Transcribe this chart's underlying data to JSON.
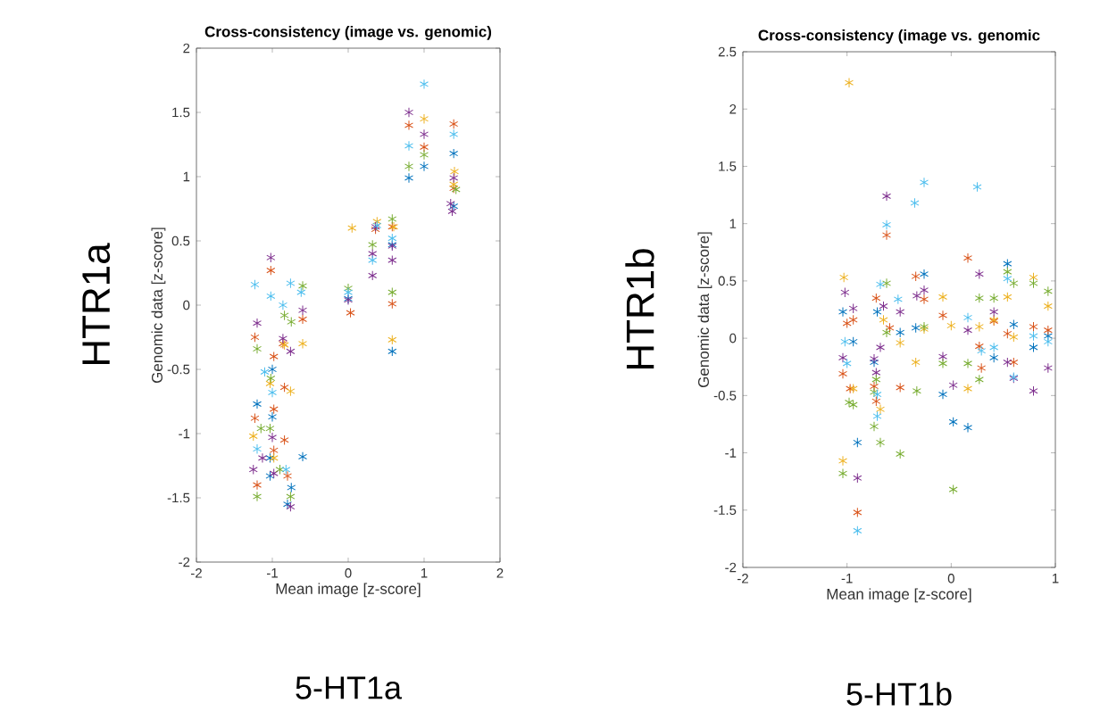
{
  "chart_data": [
    {
      "type": "scatter",
      "title": "Cross-consistency (image vs. genomic)",
      "xlabel": "Mean image [z-score]",
      "ylabel": "Genomic data [z-score]",
      "annotations": [
        "HTR1a",
        "5-HT1a"
      ],
      "marker": "cross",
      "xlim": [
        -2,
        2
      ],
      "ylim": [
        -2,
        2
      ],
      "xticks": [
        -2,
        -1,
        0,
        1,
        2
      ],
      "yticks": [
        -2,
        -1.5,
        -1,
        -0.5,
        0,
        0.5,
        1,
        1.5,
        2
      ],
      "series": [
        {
          "color": "#0072bd",
          "x": [
            -1.2,
            -1.03,
            -1.0,
            -1.03,
            -1.0,
            -0.8,
            -0.75,
            -0.6,
            0.0,
            0.58,
            0.58,
            0.8,
            1.0,
            1.39,
            1.39
          ],
          "values": [
            -0.77,
            -1.33,
            -0.5,
            -1.19,
            -0.87,
            -1.55,
            -1.42,
            -1.18,
            0.05,
            0.47,
            -0.36,
            0.99,
            1.08,
            1.18,
            0.77
          ]
        },
        {
          "color": "#d95319",
          "x": [
            -1.23,
            -1.23,
            -1.2,
            -1.02,
            -0.98,
            -0.98,
            -0.98,
            -0.86,
            -0.84,
            -0.84,
            -0.8,
            -0.6,
            0.03,
            0.36,
            0.58,
            0.58,
            0.8,
            1.0,
            1.39,
            1.39
          ],
          "values": [
            -0.25,
            -0.88,
            -1.4,
            0.27,
            -0.4,
            -0.81,
            -1.13,
            -0.3,
            -0.64,
            -1.05,
            -1.33,
            -0.11,
            -0.06,
            0.59,
            0.61,
            0.01,
            1.4,
            1.23,
            1.41,
            0.91
          ]
        },
        {
          "color": "#edb120",
          "x": [
            -1.25,
            -0.98,
            -1.03,
            -0.84,
            -0.76,
            -0.6,
            0.05,
            0.38,
            0.6,
            0.58,
            1.0,
            1.4,
            1.39
          ],
          "values": [
            -1.02,
            -1.19,
            -0.61,
            -0.31,
            -0.67,
            -0.3,
            0.6,
            0.65,
            0.61,
            -0.27,
            1.45,
            1.04,
            0.94
          ]
        },
        {
          "color": "#7e2f8e",
          "x": [
            -1.2,
            -1.25,
            -1.13,
            -1.02,
            -1.0,
            -0.98,
            -0.86,
            -0.76,
            -0.76,
            -0.6,
            0.0,
            0.36,
            0.32,
            0.32,
            0.58,
            0.58,
            0.8,
            1.0,
            1.39,
            1.35,
            1.37
          ],
          "values": [
            -0.14,
            -1.28,
            -1.19,
            0.37,
            -1.03,
            -1.31,
            -0.26,
            -1.57,
            -0.36,
            -0.04,
            0.04,
            0.61,
            0.4,
            0.23,
            0.46,
            0.35,
            1.5,
            1.33,
            0.99,
            0.79,
            0.73
          ]
        },
        {
          "color": "#77ac30",
          "x": [
            -1.2,
            -1.15,
            -1.2,
            -1.02,
            -1.03,
            -0.9,
            -0.84,
            -0.75,
            -0.76,
            -0.6,
            0.0,
            0.32,
            0.58,
            0.58,
            0.8,
            1.0,
            1.42
          ],
          "values": [
            -0.34,
            -0.96,
            -1.49,
            -0.57,
            -0.96,
            -1.28,
            -0.08,
            -0.13,
            -1.49,
            0.15,
            0.13,
            0.47,
            0.67,
            0.1,
            1.08,
            1.17,
            0.9
          ]
        },
        {
          "color": "#4dbeee",
          "x": [
            -1.23,
            -1.2,
            -1.02,
            -1.1,
            -1.0,
            -0.86,
            -0.82,
            -0.76,
            -0.62,
            0.0,
            0.32,
            0.38,
            0.58,
            0.8,
            1.0,
            1.39
          ],
          "values": [
            0.16,
            -1.12,
            0.07,
            -0.52,
            -0.68,
            0.0,
            -1.28,
            0.17,
            0.1,
            0.1,
            0.35,
            0.62,
            0.52,
            1.24,
            1.72,
            1.33
          ]
        }
      ]
    },
    {
      "type": "scatter",
      "title": "Cross-consistency (image vs. genomic",
      "xlabel": "Mean image [z-score]",
      "ylabel": "Genomic data [z-score]",
      "annotations": [
        "HTR1b",
        "5-HT1b"
      ],
      "marker": "cross",
      "xlim": [
        -2,
        1
      ],
      "ylim": [
        -2,
        2.5
      ],
      "xticks": [
        -2,
        -1,
        0,
        1
      ],
      "yticks": [
        -2,
        -1.5,
        -1,
        -0.5,
        0,
        0.5,
        1,
        1.5,
        2,
        2.5
      ],
      "series": [
        {
          "color": "#0072bd",
          "x": [
            -1.04,
            -0.94,
            -0.9,
            -0.71,
            -0.74,
            -0.49,
            -0.34,
            -0.26,
            -0.08,
            0.02,
            0.16,
            0.41,
            0.54,
            0.6,
            0.79,
            0.93
          ],
          "values": [
            0.23,
            -0.03,
            -0.91,
            0.23,
            -0.21,
            0.05,
            0.09,
            0.56,
            -0.49,
            -0.73,
            -0.78,
            -0.17,
            0.65,
            0.12,
            -0.08,
            0.02
          ]
        },
        {
          "color": "#d95319",
          "x": [
            -0.62,
            -1.0,
            -0.94,
            -1.04,
            -0.97,
            -0.9,
            -0.72,
            -0.74,
            -0.72,
            -0.59,
            -0.49,
            -0.34,
            -0.26,
            -0.08,
            0.16,
            0.27,
            0.29,
            0.41,
            0.54,
            0.6,
            0.79,
            0.93
          ],
          "values": [
            0.9,
            0.13,
            0.16,
            -0.31,
            -0.44,
            -1.52,
            0.35,
            -0.42,
            -0.55,
            0.09,
            -0.43,
            0.54,
            0.34,
            0.2,
            0.7,
            -0.07,
            -0.26,
            0.15,
            0.04,
            -0.21,
            0.1,
            0.07
          ]
        },
        {
          "color": "#edb120",
          "x": [
            -0.98,
            -1.03,
            -0.94,
            -1.04,
            -0.68,
            -0.65,
            -0.49,
            -0.34,
            -0.26,
            -0.08,
            0.0,
            0.16,
            0.27,
            0.41,
            0.54,
            0.6,
            0.79,
            0.93
          ],
          "values": [
            2.23,
            0.53,
            -0.44,
            -1.07,
            -0.62,
            0.16,
            -0.04,
            -0.21,
            0.08,
            0.36,
            0.11,
            -0.44,
            0.1,
            0.16,
            0.36,
            0.01,
            0.53,
            0.28
          ]
        },
        {
          "color": "#7e2f8e",
          "x": [
            -0.62,
            -1.02,
            -0.94,
            -1.04,
            -0.9,
            -0.65,
            -0.74,
            -0.72,
            -0.68,
            -0.49,
            -0.33,
            -0.26,
            -0.08,
            0.02,
            0.16,
            0.27,
            0.41,
            0.54,
            0.6,
            0.79,
            0.93
          ],
          "values": [
            1.24,
            0.4,
            0.26,
            -0.17,
            -1.22,
            0.28,
            -0.18,
            -0.3,
            -0.08,
            0.23,
            0.37,
            0.42,
            -0.16,
            -0.41,
            0.07,
            0.56,
            0.23,
            -0.21,
            -0.35,
            -0.46,
            -0.26
          ]
        },
        {
          "color": "#77ac30",
          "x": [
            -0.98,
            -0.94,
            -1.04,
            -0.62,
            -0.72,
            -0.74,
            -0.74,
            -0.68,
            -0.62,
            -0.49,
            -0.33,
            -0.26,
            -0.08,
            0.02,
            0.16,
            0.27,
            0.27,
            0.41,
            0.54,
            0.6,
            0.79,
            0.93
          ],
          "values": [
            -0.56,
            -0.58,
            -1.18,
            0.48,
            -0.36,
            -0.47,
            -0.77,
            -0.91,
            0.05,
            -1.01,
            -0.46,
            0.1,
            -0.22,
            -1.32,
            -0.22,
            0.35,
            -0.36,
            0.35,
            0.58,
            0.48,
            0.48,
            0.41
          ]
        },
        {
          "color": "#4dbeee",
          "x": [
            -0.26,
            -0.35,
            0.25,
            -0.62,
            -1.02,
            -1.0,
            -0.9,
            -0.68,
            -0.71,
            -0.71,
            -0.51,
            0.16,
            0.29,
            0.41,
            0.54,
            0.6,
            0.79,
            0.93
          ],
          "values": [
            1.36,
            1.18,
            1.32,
            0.99,
            -0.03,
            -0.22,
            -1.68,
            0.47,
            -0.49,
            -0.68,
            0.34,
            0.18,
            -0.11,
            -0.08,
            0.52,
            -0.34,
            0.02,
            -0.03
          ]
        }
      ]
    }
  ]
}
